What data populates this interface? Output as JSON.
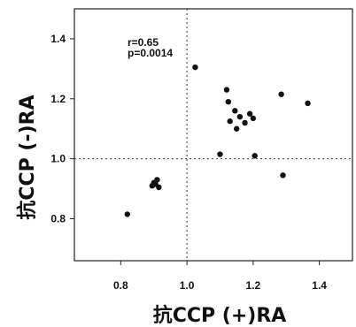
{
  "chart_data": {
    "type": "scatter",
    "xlabel": "抗CCP (+)RA",
    "ylabel": "抗CCP (-)RA",
    "xlim": [
      0.66,
      1.5
    ],
    "ylim": [
      0.66,
      1.5
    ],
    "x_ticks": [
      0.8,
      1.0,
      1.2,
      1.4
    ],
    "y_ticks": [
      0.8,
      1.0,
      1.2,
      1.4
    ],
    "x_tick_labels": [
      "0.8",
      "1.0",
      "1.2",
      "1.4"
    ],
    "y_tick_labels": [
      "0.8",
      "1.0",
      "1.2",
      "1.4"
    ],
    "reference_lines": {
      "x": 1.0,
      "y": 1.0,
      "style": "dotted"
    },
    "annotations": [
      "r=0.65",
      "p=0.0014"
    ],
    "grid": false,
    "points": [
      {
        "x": 0.82,
        "y": 0.815
      },
      {
        "x": 0.895,
        "y": 0.91
      },
      {
        "x": 0.9,
        "y": 0.92
      },
      {
        "x": 0.91,
        "y": 0.93
      },
      {
        "x": 0.915,
        "y": 0.905
      },
      {
        "x": 0.905,
        "y": 0.915
      },
      {
        "x": 1.025,
        "y": 1.305
      },
      {
        "x": 1.1,
        "y": 1.015
      },
      {
        "x": 1.12,
        "y": 1.23
      },
      {
        "x": 1.125,
        "y": 1.19
      },
      {
        "x": 1.13,
        "y": 1.125
      },
      {
        "x": 1.145,
        "y": 1.16
      },
      {
        "x": 1.15,
        "y": 1.1
      },
      {
        "x": 1.16,
        "y": 1.14
      },
      {
        "x": 1.175,
        "y": 1.12
      },
      {
        "x": 1.19,
        "y": 1.15
      },
      {
        "x": 1.2,
        "y": 1.135
      },
      {
        "x": 1.205,
        "y": 1.01
      },
      {
        "x": 1.285,
        "y": 1.215
      },
      {
        "x": 1.29,
        "y": 0.945
      },
      {
        "x": 1.365,
        "y": 1.185
      }
    ]
  }
}
